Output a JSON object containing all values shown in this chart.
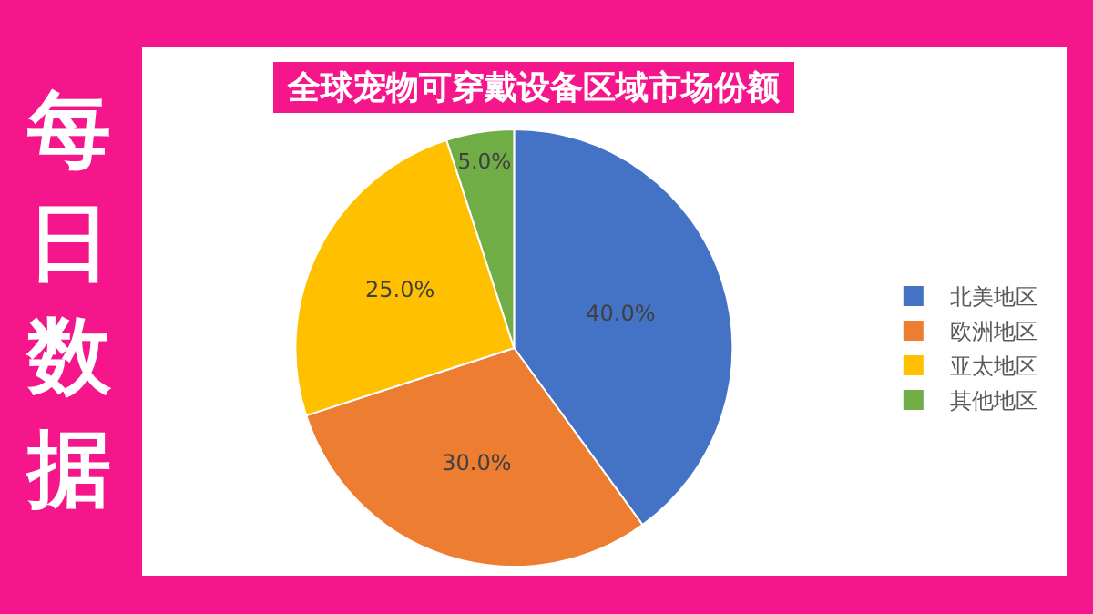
{
  "chart_data": {
    "type": "pie",
    "title": "全球宠物可穿戴设备区域市场份额",
    "categories": [
      "北美地区",
      "欧洲地区",
      "亚太地区",
      "其他地区"
    ],
    "values": [
      40,
      30,
      25,
      5
    ],
    "colors": [
      "#4472c4",
      "#ed7d31",
      "#ffc000",
      "#70ad47"
    ],
    "value_labels": [
      "40.0%",
      "30.0%",
      "25.0%",
      "5.0%"
    ],
    "legend": "right",
    "annotations": [
      "每日数据"
    ]
  }
}
